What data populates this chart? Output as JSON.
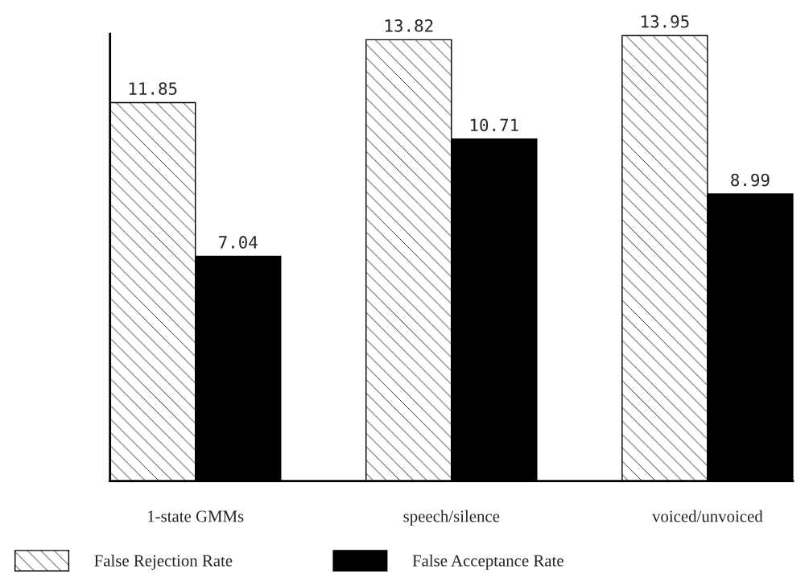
{
  "chart_data": {
    "type": "bar",
    "categories": [
      "1-state GMMs",
      "speech/silence",
      "voiced/unvoiced"
    ],
    "series": [
      {
        "name": "False Rejection Rate",
        "color": "#ffffff",
        "values": [
          11.85,
          13.82,
          13.95
        ]
      },
      {
        "name": "False Acceptance Rate",
        "color": "#000000",
        "values": [
          7.04,
          10.71,
          8.99
        ]
      }
    ],
    "ylim": [
      0,
      14
    ],
    "data_labels": true,
    "grid": false,
    "legend": "bottom"
  }
}
